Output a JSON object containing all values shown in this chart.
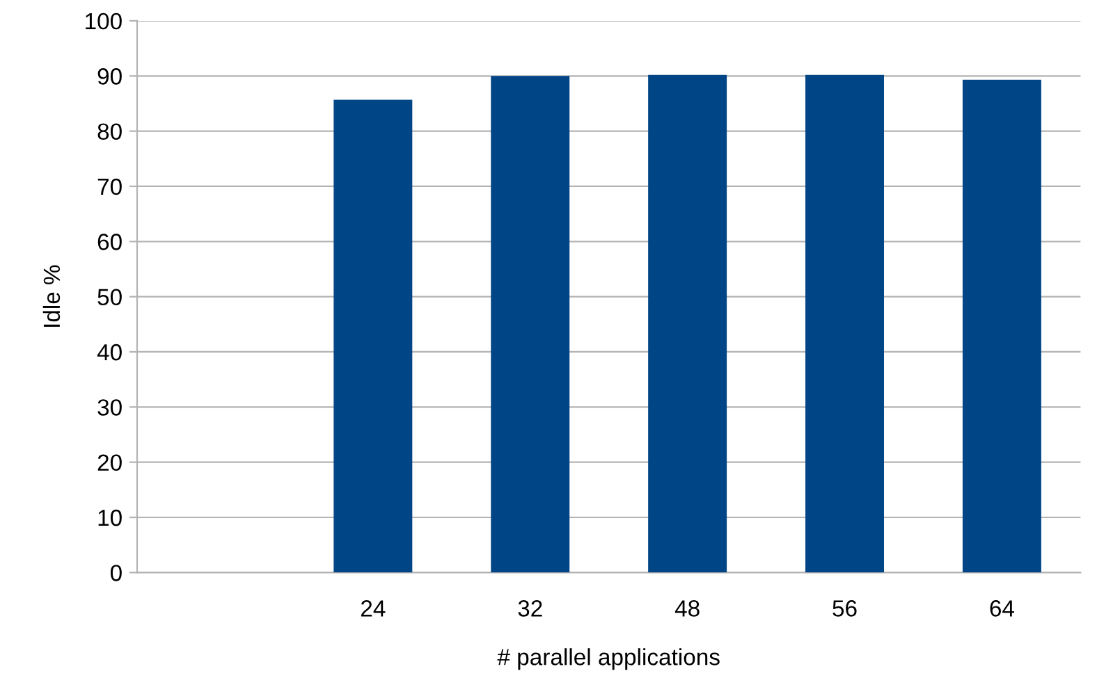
{
  "chart_data": {
    "type": "bar",
    "xlabel": "# parallel applications",
    "ylabel": "Idle %",
    "categories": [
      null,
      "24",
      "32",
      "48",
      "56",
      "64"
    ],
    "values": [
      null,
      85.7,
      90.0,
      90.2,
      90.2,
      89.3
    ],
    "color": "#004586",
    "ylim": [
      0,
      100
    ],
    "yticks": [
      0,
      10,
      20,
      30,
      40,
      50,
      60,
      70,
      80,
      90,
      100
    ],
    "grid": "y",
    "legend": false
  }
}
